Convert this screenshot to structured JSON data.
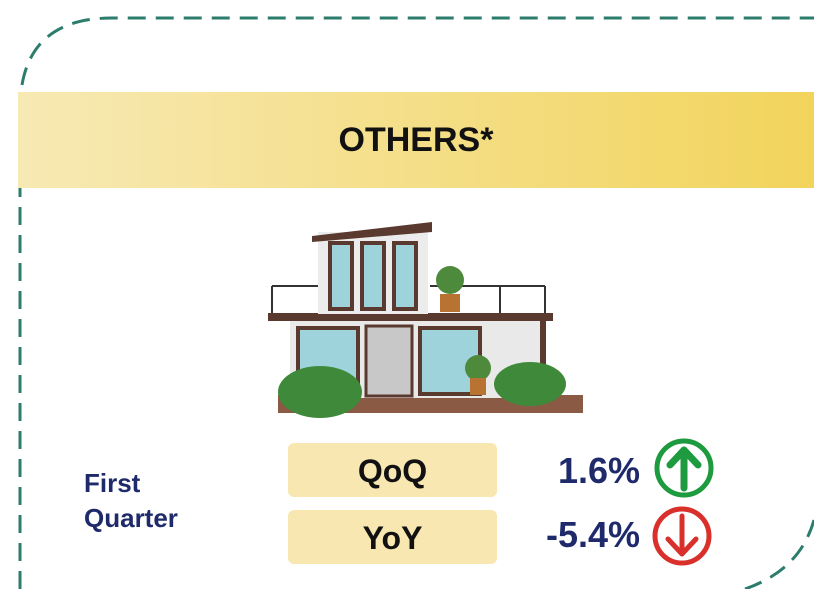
{
  "card": {
    "title": "OTHERS*",
    "period": "First Quarter",
    "metrics": [
      {
        "label": "QoQ",
        "value": "1.6%"
      },
      {
        "label": "YoY",
        "value": "-5.4%"
      }
    ]
  }
}
